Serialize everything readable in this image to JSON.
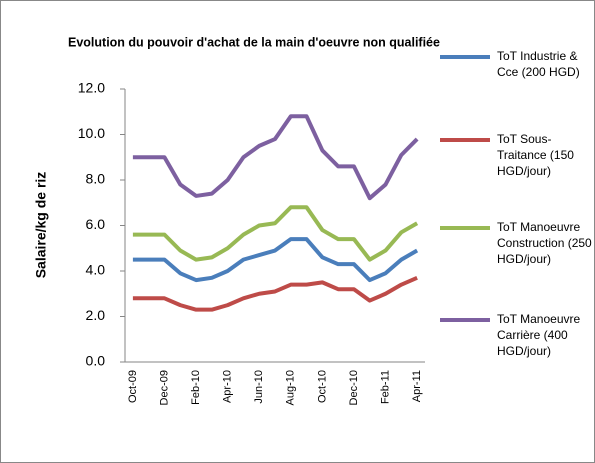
{
  "chart_data": {
    "type": "line",
    "title": "Evolution du pouvoir d'achat de la main d'oeuvre non qualifiée",
    "y_label": "Salaire/kg de riz",
    "categories": [
      "Oct-09",
      null,
      "Dec-09",
      null,
      "Feb-10",
      null,
      "Apr-10",
      null,
      "Jun-10",
      null,
      "Aug-10",
      null,
      "Oct-10",
      null,
      "Dec-10",
      null,
      "Feb-11",
      null,
      "Apr-11"
    ],
    "series": [
      {
        "name": "ToT Industrie & Cce (200 HGD)",
        "color": "#4a7ebb",
        "values": [
          4.5,
          4.5,
          4.5,
          3.9,
          3.6,
          3.7,
          4.0,
          4.5,
          4.7,
          4.9,
          5.4,
          5.4,
          4.6,
          4.3,
          4.3,
          3.6,
          3.9,
          4.5,
          4.9
        ]
      },
      {
        "name": "ToT Sous-Traitance (150 HGD/jour)",
        "color": "#be4b48",
        "values": [
          2.8,
          2.8,
          2.8,
          2.5,
          2.3,
          2.3,
          2.5,
          2.8,
          3.0,
          3.1,
          3.4,
          3.4,
          3.5,
          3.2,
          3.2,
          2.7,
          3.0,
          3.4,
          3.7
        ]
      },
      {
        "name": "ToT Manoeuvre Construction (250 HGD/jour)",
        "color": "#98b954",
        "values": [
          5.6,
          5.6,
          5.6,
          4.9,
          4.5,
          4.6,
          5.0,
          5.6,
          6.0,
          6.1,
          6.8,
          6.8,
          5.8,
          5.4,
          5.4,
          4.5,
          4.9,
          5.7,
          6.1
        ]
      },
      {
        "name": "ToT Manoeuvre Carrière (400 HGD/jour)",
        "color": "#7d60a0",
        "values": [
          9.0,
          9.0,
          9.0,
          7.8,
          7.3,
          7.4,
          8.0,
          9.0,
          9.5,
          9.8,
          10.8,
          10.8,
          9.3,
          8.6,
          8.6,
          7.2,
          7.8,
          9.1,
          9.8
        ]
      }
    ],
    "ylim": [
      0,
      12
    ],
    "yticks": [
      {
        "value": 0,
        "label": "0.0"
      },
      {
        "value": 2,
        "label": "2.0"
      },
      {
        "value": 4,
        "label": "4.0"
      },
      {
        "value": 6,
        "label": "6.0"
      },
      {
        "value": 8,
        "label": "8.0"
      },
      {
        "value": 10,
        "label": "10.0"
      },
      {
        "value": 12,
        "label": "12.0"
      }
    ],
    "grid": false,
    "legend": "right"
  }
}
